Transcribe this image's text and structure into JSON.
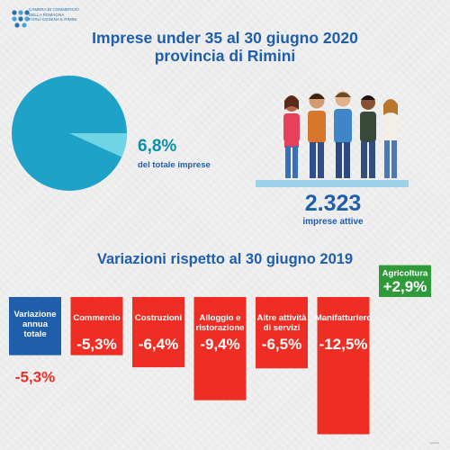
{
  "header": {
    "logo_lines": [
      "CAMERA DI COMMERCIO",
      "DELLA ROMAGNA",
      "FORLÌ-CESENA E RIMINI"
    ],
    "title_line1": "Imprese under 35 al 30 giugno 2020",
    "title_line2": "provincia di Rimini"
  },
  "share": {
    "value": "6,8%",
    "label": "del totale imprese",
    "fraction": 0.068,
    "colors": {
      "main": "#1fa2c8",
      "slice": "#6fd4e3"
    }
  },
  "count": {
    "value": "2.323",
    "label": "imprese attive"
  },
  "subtitle": "Variazioni rispetto al 30 giugno 2019",
  "chart_data": {
    "type": "bar",
    "title": "Variazioni rispetto al 30 giugno 2019",
    "categories": [
      {
        "label": [
          "Variazione",
          "annua",
          "totale"
        ],
        "value": -5.3,
        "display": "-5,3%",
        "kind": "total"
      },
      {
        "label": [
          "Commercio"
        ],
        "value": -5.3,
        "display": "-5,3%",
        "kind": "negative"
      },
      {
        "label": [
          "Costruzioni"
        ],
        "value": -6.4,
        "display": "-6,4%",
        "kind": "negative"
      },
      {
        "label": [
          "Alloggio e",
          "ristorazione"
        ],
        "value": -9.4,
        "display": "-9,4%",
        "kind": "negative"
      },
      {
        "label": [
          "Altre attività",
          "di servizi"
        ],
        "value": -6.5,
        "display": "-6,5%",
        "kind": "negative"
      },
      {
        "label": [
          "Manifatturiero"
        ],
        "value": -12.5,
        "display": "-12,5%",
        "kind": "negative"
      },
      {
        "label": [
          "Agricoltura"
        ],
        "value": 2.9,
        "display": "+2,9%",
        "kind": "positive"
      }
    ],
    "colors": {
      "total": "#1f5eab",
      "negative": "#ee2e24",
      "positive": "#2e9a3a"
    }
  },
  "footer": "autostat"
}
